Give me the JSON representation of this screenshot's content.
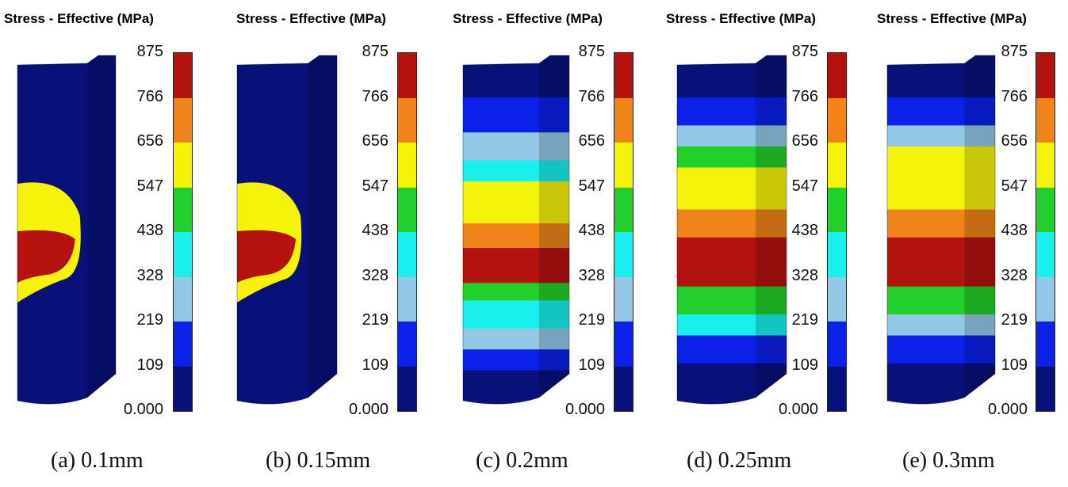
{
  "legend_colors": [
    "#b4120f",
    "#f08418",
    "#f6f30a",
    "#21d02a",
    "#19f0ee",
    "#92c8e6",
    "#0b20e8",
    "#08107a"
  ],
  "panels": [
    {
      "title": "Stress - Effective (MPa)",
      "ticks": [
        "875",
        "766",
        "656",
        "547",
        "438",
        "328",
        "219",
        "109",
        "0.000"
      ],
      "caption": "(a) 0.1mm"
    },
    {
      "title": "Stress - Effective (MPa)",
      "ticks": [
        "875",
        "766",
        "656",
        "547",
        "438",
        "328",
        "219",
        "109",
        "0.000"
      ],
      "caption": "(b) 0.15mm"
    },
    {
      "title": "Stress - Effective (MPa)",
      "ticks": [
        "875",
        "766",
        "656",
        "547",
        "438",
        "328",
        "219",
        "109",
        "0.000"
      ],
      "caption": "(c) 0.2mm"
    },
    {
      "title": "Stress - Effective (MPa)",
      "ticks": [
        "875",
        "766",
        "656",
        "547",
        "438",
        "328",
        "219",
        "109",
        "0.000"
      ],
      "caption": "(d) 0.25mm"
    },
    {
      "title": "Stress - Effective (MPa)",
      "ticks": [
        "875",
        "766",
        "656",
        "547",
        "438",
        "328",
        "219",
        "109",
        "0.000"
      ],
      "caption": "(e) 0.3mm"
    }
  ]
}
